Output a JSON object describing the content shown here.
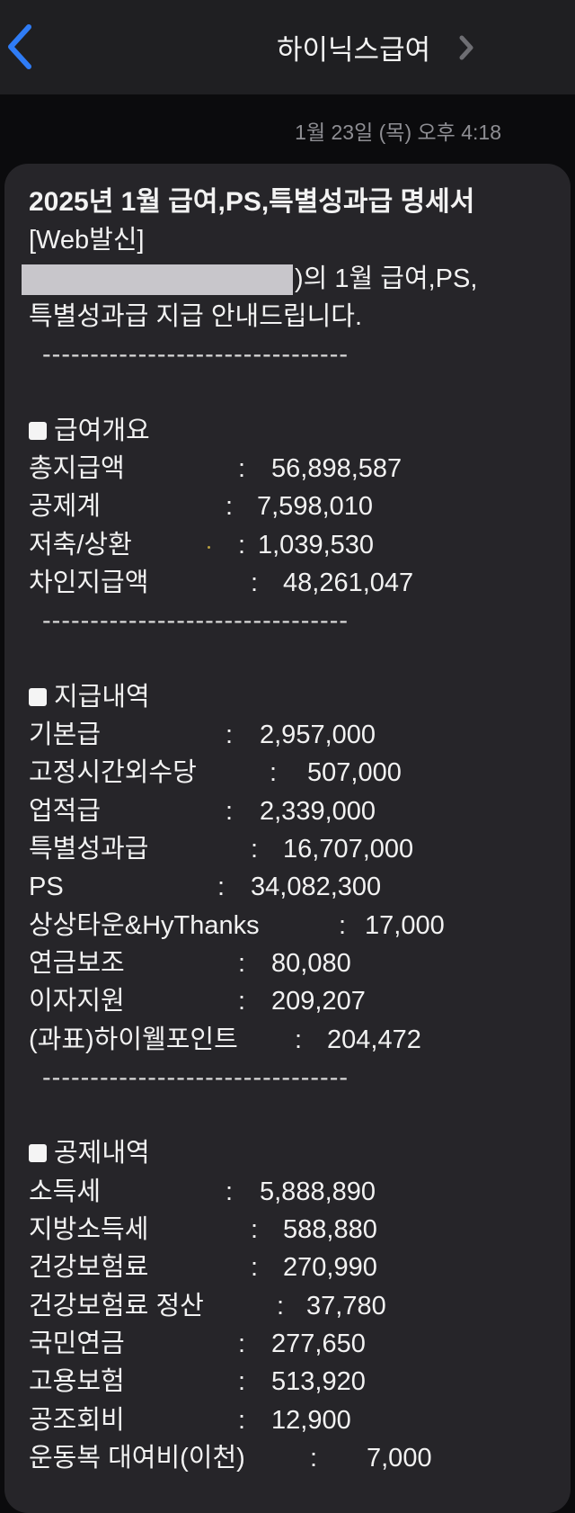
{
  "header": {
    "title": "하이닉스급여",
    "back_icon": "chevron-left-icon",
    "detail_icon": "chevron-right-icon",
    "accent": "#2f7cf6"
  },
  "timestamp": "1월 23일 (목) 오후 4:18",
  "message": {
    "title_line1": "2025년 1월 급여,PS,특별성과급 명세서",
    "title_line2": "[Web발신]",
    "intro_line1": ")의 1월 급여,PS,",
    "intro_line2": "특별성과급 지급 안내드립니다.",
    "divider": "--------------------------------",
    "sections": [
      {
        "title": "급여개요",
        "rows": [
          {
            "label": "총지급액",
            "value": "56,898,587"
          },
          {
            "label": "공제계",
            "value": "7,598,010"
          },
          {
            "label": "저축/상환",
            "value": "1,039,530"
          },
          {
            "label": "차인지급액",
            "value": "48,261,047"
          }
        ]
      },
      {
        "title": "지급내역",
        "rows": [
          {
            "label": "기본급",
            "value": "2,957,000"
          },
          {
            "label": "고정시간외수당",
            "value": "507,000"
          },
          {
            "label": "업적급",
            "value": "2,339,000"
          },
          {
            "label": "특별성과급",
            "value": "16,707,000"
          },
          {
            "label": "PS",
            "value": "34,082,300"
          },
          {
            "label": "상상타운&HyThanks",
            "value": "17,000"
          },
          {
            "label": "연금보조",
            "value": "80,080"
          },
          {
            "label": "이자지원",
            "value": "209,207"
          },
          {
            "label": "(과표)하이웰포인트",
            "value": "204,472"
          }
        ]
      },
      {
        "title": "공제내역",
        "rows": [
          {
            "label": "소득세",
            "value": "5,888,890"
          },
          {
            "label": "지방소득세",
            "value": "588,880"
          },
          {
            "label": "건강보험료",
            "value": "270,990"
          },
          {
            "label": "건강보험료 정산",
            "value": "37,780"
          },
          {
            "label": "국민연금",
            "value": "277,650"
          },
          {
            "label": "고용보험",
            "value": "513,920"
          },
          {
            "label": "공조회비",
            "value": "12,900"
          },
          {
            "label": "운동복 대여비(이천)",
            "value": "7,000"
          }
        ]
      }
    ],
    "colon": ":"
  }
}
